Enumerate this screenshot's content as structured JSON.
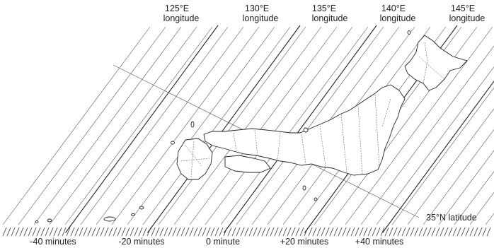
{
  "longitude_labels": [
    {
      "deg": "125°E",
      "word": "longitude"
    },
    {
      "deg": "130°E",
      "word": "longitude"
    },
    {
      "deg": "135°E",
      "word": "longitude"
    },
    {
      "deg": "140°E",
      "word": "longitude"
    },
    {
      "deg": "145°E",
      "word": "longitude"
    }
  ],
  "latitude_label": "35°N latitude",
  "time_labels": [
    "-40 minutes",
    "-20 minutes",
    "0 minute",
    "+20 minutes",
    "+40 minutes"
  ],
  "colors": {
    "ink": "#222222",
    "background": "#ffffff"
  }
}
